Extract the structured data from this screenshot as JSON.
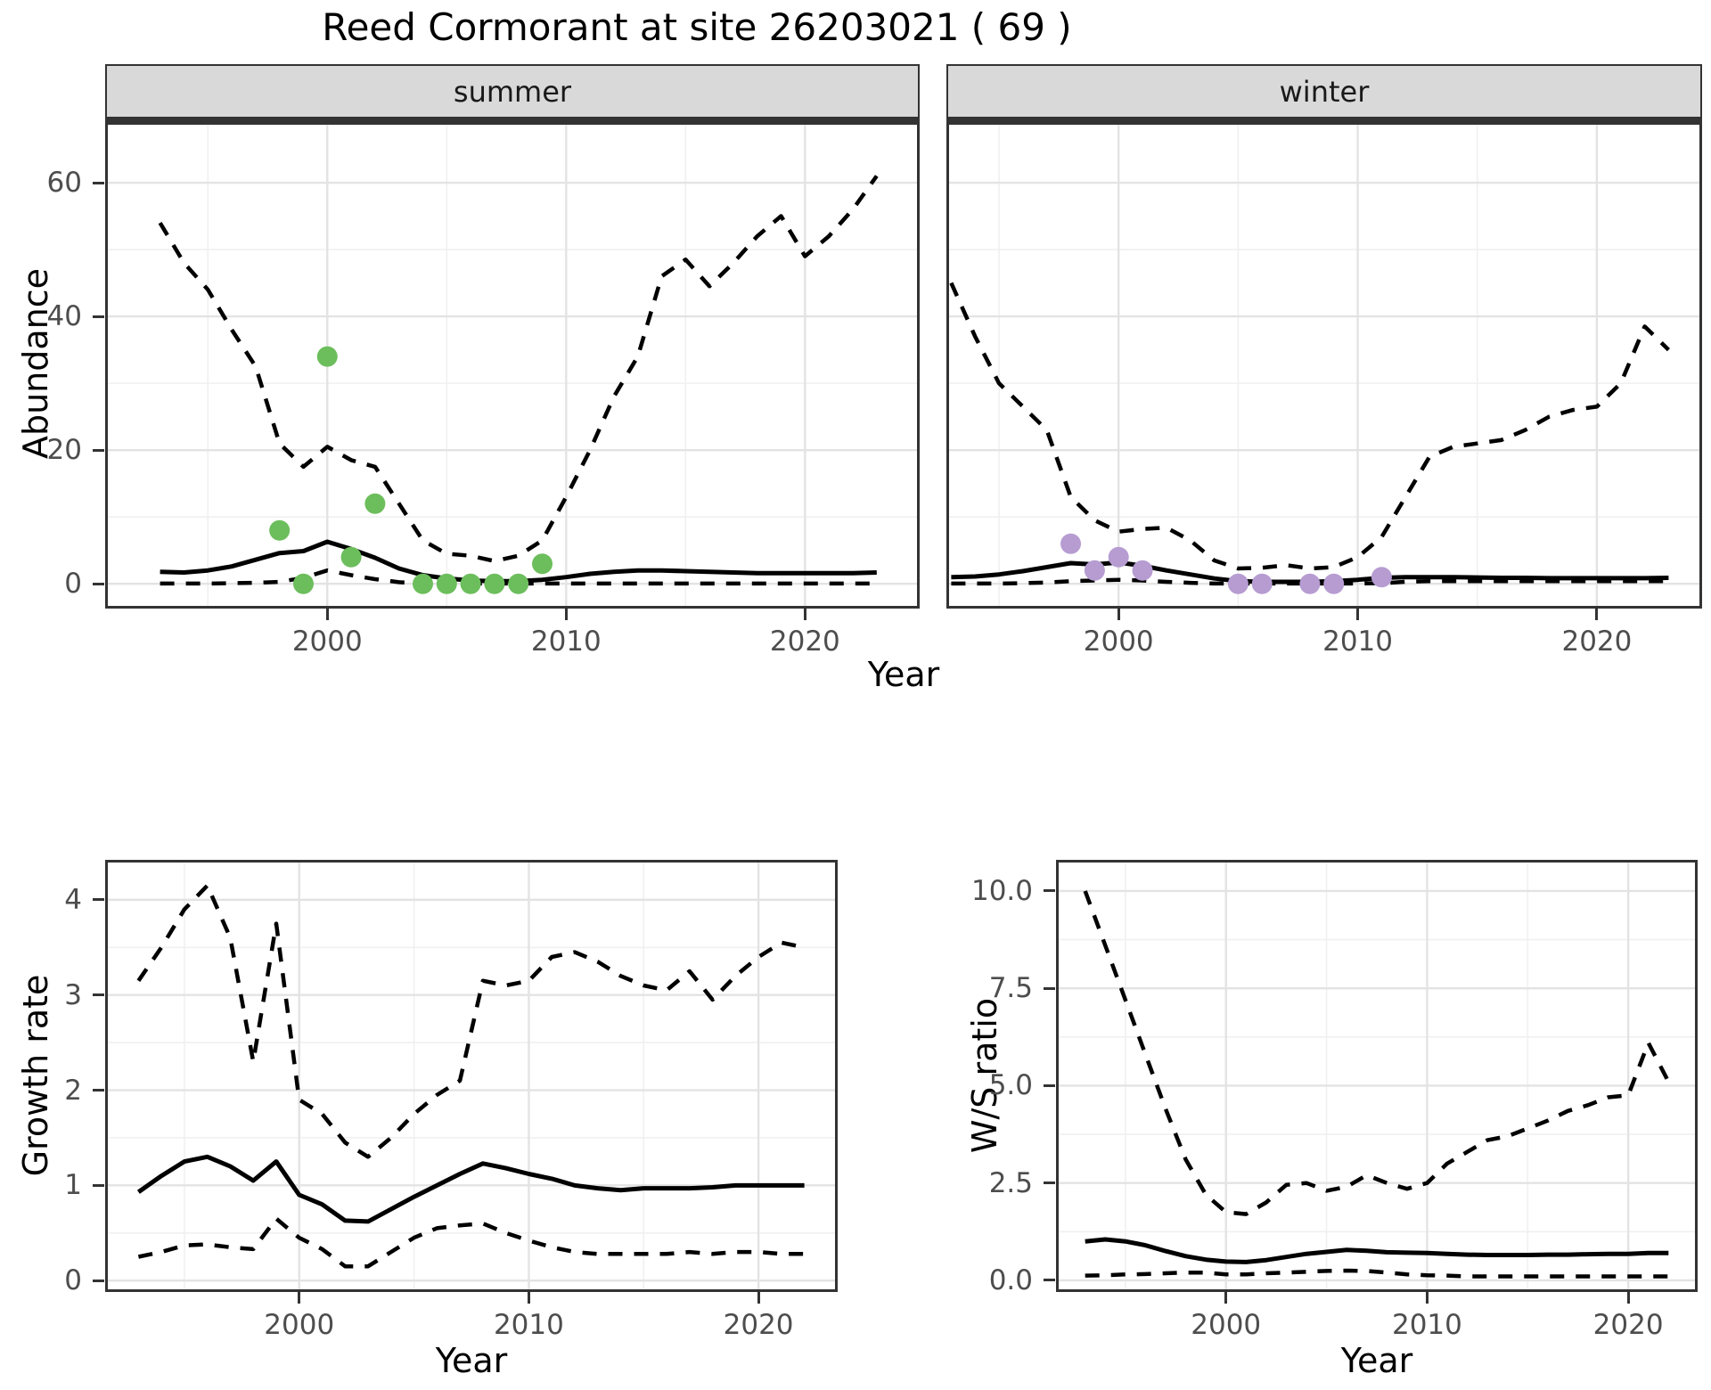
{
  "title": "Reed Cormorant at site 26203021 ( 69 )",
  "facets": {
    "summer_label": "summer",
    "winter_label": "winter"
  },
  "axis_labels": {
    "abundance": "Abundance",
    "year_top": "Year",
    "growth": "Growth rate",
    "year_growth": "Year",
    "ws": "W/S ratio",
    "year_ws": "Year"
  },
  "colors": {
    "summer_point": "#6cbe5c",
    "winter_point": "#b69cd1",
    "line": "#000000",
    "grid_major": "#e3e3e3",
    "grid_minor": "#f0f0f0",
    "strip_bg": "#d9d9d9",
    "panel_border": "#333333",
    "axis_text": "#4d4d4d"
  },
  "chart_data": [
    {
      "name": "abundance-summer",
      "type": "line",
      "facet": "summer",
      "ylabel": "Abundance",
      "xlabel": "Year",
      "x_domain": [
        1990.7,
        2024.8
      ],
      "y_domain": [
        -3.7,
        69.6
      ],
      "x_ticks": [
        2000,
        2010,
        2020
      ],
      "x_tick_labels": [
        "2000",
        "2010",
        "2020"
      ],
      "x_minor": [
        1995,
        2005,
        2015
      ],
      "y_ticks": [
        0,
        20,
        40,
        60
      ],
      "y_tick_labels": [
        "0",
        "20",
        "40",
        "60"
      ],
      "y_minor": [
        10,
        30,
        50
      ],
      "x": [
        1993,
        1994,
        1995,
        1996,
        1997,
        1998,
        1999,
        2000,
        2001,
        2002,
        2003,
        2004,
        2005,
        2006,
        2007,
        2008,
        2009,
        2010,
        2011,
        2012,
        2013,
        2014,
        2015,
        2016,
        2017,
        2018,
        2019,
        2020,
        2021,
        2022,
        2023
      ],
      "series": [
        {
          "name": "upper95",
          "style": "dashed",
          "values": [
            54,
            48,
            44,
            38,
            32.5,
            21,
            17.5,
            20.5,
            18.5,
            17.5,
            12,
            6.5,
            4.5,
            4.2,
            3.4,
            4.2,
            6.5,
            13,
            20,
            28,
            34,
            46,
            48.5,
            44.5,
            48,
            52,
            55,
            49,
            52,
            56,
            61
          ]
        },
        {
          "name": "median",
          "style": "solid",
          "values": [
            1.8,
            1.7,
            2.0,
            2.6,
            3.6,
            4.6,
            4.9,
            6.3,
            5.2,
            3.9,
            2.3,
            1.3,
            0.8,
            0.5,
            0.4,
            0.4,
            0.6,
            1.0,
            1.5,
            1.8,
            2.0,
            2.0,
            1.9,
            1.8,
            1.7,
            1.6,
            1.6,
            1.6,
            1.6,
            1.6,
            1.7
          ]
        },
        {
          "name": "lower95",
          "style": "dashed",
          "values": [
            0.05,
            0.05,
            0.05,
            0.1,
            0.15,
            0.3,
            0.9,
            2.0,
            1.3,
            0.7,
            0.25,
            0.05,
            0.05,
            0.05,
            0.05,
            0.05,
            0.05,
            0.05,
            0.05,
            0.05,
            0.05,
            0.05,
            0.05,
            0.05,
            0.05,
            0.05,
            0.05,
            0.05,
            0.05,
            0.05,
            0.05
          ]
        }
      ],
      "points": {
        "name": "observed-counts",
        "color_key": "summer_point",
        "x": [
          1998,
          1999,
          2000,
          2001,
          2002,
          2004,
          2005,
          2006,
          2007,
          2008,
          2009
        ],
        "y": [
          8,
          0,
          34,
          4,
          12,
          0,
          0,
          0,
          0,
          0,
          3
        ]
      }
    },
    {
      "name": "abundance-winter",
      "type": "line",
      "facet": "winter",
      "ylabel": "Abundance",
      "xlabel": "Year",
      "x_domain": [
        1992.8,
        2024.4
      ],
      "y_domain": [
        -3.7,
        69.6
      ],
      "x_ticks": [
        2000,
        2010,
        2020
      ],
      "x_tick_labels": [
        "2000",
        "2010",
        "2020"
      ],
      "x_minor": [
        1995,
        2005,
        2015
      ],
      "y_ticks": [
        0,
        20,
        40,
        60
      ],
      "y_tick_labels": [
        "0",
        "20",
        "40",
        "60"
      ],
      "y_minor": [
        10,
        30,
        50
      ],
      "x": [
        1993,
        1994,
        1995,
        1996,
        1997,
        1998,
        1999,
        2000,
        2001,
        2002,
        2003,
        2004,
        2005,
        2006,
        2007,
        2008,
        2009,
        2010,
        2011,
        2012,
        2013,
        2014,
        2015,
        2016,
        2017,
        2018,
        2019,
        2020,
        2021,
        2022,
        2023
      ],
      "series": [
        {
          "name": "upper95",
          "style": "dashed",
          "values": [
            45,
            37,
            30,
            26.5,
            23,
            13,
            9.5,
            7.8,
            8.2,
            8.4,
            6.5,
            3.5,
            2.3,
            2.4,
            2.8,
            2.3,
            2.5,
            4,
            7,
            13,
            19,
            20.5,
            21,
            21.5,
            23,
            25,
            26,
            26.5,
            30,
            38.5,
            35
          ]
        },
        {
          "name": "median",
          "style": "solid",
          "values": [
            1.0,
            1.1,
            1.4,
            1.9,
            2.5,
            3.1,
            2.9,
            3.2,
            2.7,
            2.0,
            1.4,
            0.8,
            0.4,
            0.3,
            0.3,
            0.3,
            0.4,
            0.6,
            0.9,
            1.0,
            1.0,
            1.0,
            0.95,
            0.9,
            0.9,
            0.85,
            0.85,
            0.85,
            0.85,
            0.85,
            0.9
          ]
        },
        {
          "name": "lower95",
          "style": "dashed",
          "values": [
            0.05,
            0.05,
            0.05,
            0.1,
            0.2,
            0.4,
            0.5,
            0.6,
            0.5,
            0.3,
            0.15,
            0.05,
            0.05,
            0.05,
            0.05,
            0.05,
            0.05,
            0.05,
            0.1,
            0.3,
            0.4,
            0.4,
            0.4,
            0.4,
            0.4,
            0.4,
            0.4,
            0.4,
            0.4,
            0.4,
            0.4
          ]
        }
      ],
      "points": {
        "name": "observed-counts",
        "color_key": "winter_point",
        "x": [
          1998,
          1999,
          2000,
          2001,
          2005,
          2006,
          2008,
          2009,
          2011
        ],
        "y": [
          6,
          2,
          4,
          2,
          0,
          0,
          0,
          0,
          1
        ]
      }
    },
    {
      "name": "growth-rate",
      "type": "line",
      "ylabel": "Growth rate",
      "xlabel": "Year",
      "x_domain": [
        1991.55,
        2023.45
      ],
      "y_domain": [
        -0.12,
        4.42
      ],
      "x_ticks": [
        2000,
        2010,
        2020
      ],
      "x_tick_labels": [
        "2000",
        "2010",
        "2020"
      ],
      "x_minor": [
        1995,
        2005,
        2015
      ],
      "y_ticks": [
        0,
        1,
        2,
        3,
        4
      ],
      "y_tick_labels": [
        "0",
        "1",
        "2",
        "3",
        "4"
      ],
      "y_minor": [
        0.5,
        1.5,
        2.5,
        3.5
      ],
      "x": [
        1993,
        1994,
        1995,
        1996,
        1997,
        1998,
        1999,
        2000,
        2001,
        2002,
        2003,
        2004,
        2005,
        2006,
        2007,
        2008,
        2009,
        2010,
        2011,
        2012,
        2013,
        2014,
        2015,
        2016,
        2017,
        2018,
        2019,
        2020,
        2021,
        2022
      ],
      "series": [
        {
          "name": "upper95",
          "style": "dashed",
          "values": [
            3.15,
            3.5,
            3.9,
            4.15,
            3.6,
            2.3,
            3.75,
            1.9,
            1.75,
            1.45,
            1.3,
            1.5,
            1.75,
            1.95,
            2.1,
            3.15,
            3.1,
            3.15,
            3.4,
            3.45,
            3.35,
            3.2,
            3.1,
            3.05,
            3.25,
            2.95,
            3.2,
            3.4,
            3.55,
            3.5
          ]
        },
        {
          "name": "median",
          "style": "solid",
          "values": [
            0.93,
            1.1,
            1.25,
            1.3,
            1.2,
            1.05,
            1.25,
            0.9,
            0.8,
            0.63,
            0.62,
            0.75,
            0.88,
            1.0,
            1.12,
            1.23,
            1.18,
            1.12,
            1.07,
            1.0,
            0.97,
            0.95,
            0.97,
            0.97,
            0.97,
            0.98,
            1.0,
            1.0,
            1.0,
            1.0
          ]
        },
        {
          "name": "lower95",
          "style": "dashed",
          "values": [
            0.25,
            0.3,
            0.37,
            0.38,
            0.35,
            0.33,
            0.65,
            0.45,
            0.33,
            0.15,
            0.15,
            0.3,
            0.45,
            0.55,
            0.58,
            0.6,
            0.5,
            0.42,
            0.35,
            0.3,
            0.28,
            0.28,
            0.28,
            0.28,
            0.3,
            0.28,
            0.3,
            0.3,
            0.28,
            0.28
          ]
        }
      ]
    },
    {
      "name": "ws-ratio",
      "type": "line",
      "ylabel": "W/S ratio",
      "xlabel": "Year",
      "x_domain": [
        1991.55,
        2023.45
      ],
      "y_domain": [
        -0.3,
        10.8
      ],
      "x_ticks": [
        2000,
        2010,
        2020
      ],
      "x_tick_labels": [
        "2000",
        "2010",
        "2020"
      ],
      "x_minor": [
        1995,
        2005,
        2015
      ],
      "y_ticks": [
        0,
        2.5,
        5,
        7.5,
        10
      ],
      "y_tick_labels": [
        "0.0",
        "2.5",
        "5.0",
        "7.5",
        "10.0"
      ],
      "y_minor": [
        1.25,
        3.75,
        6.25,
        8.75
      ],
      "x": [
        1993,
        1994,
        1995,
        1996,
        1997,
        1998,
        1999,
        2000,
        2001,
        2002,
        2003,
        2004,
        2005,
        2006,
        2007,
        2008,
        2009,
        2010,
        2011,
        2012,
        2013,
        2014,
        2015,
        2016,
        2017,
        2018,
        2019,
        2020,
        2021,
        2022
      ],
      "series": [
        {
          "name": "upper95",
          "style": "dashed",
          "values": [
            10.0,
            8.6,
            7.2,
            5.8,
            4.4,
            3.1,
            2.2,
            1.75,
            1.7,
            2.0,
            2.45,
            2.5,
            2.3,
            2.4,
            2.7,
            2.5,
            2.35,
            2.5,
            3.0,
            3.3,
            3.6,
            3.7,
            3.9,
            4.1,
            4.35,
            4.5,
            4.7,
            4.75,
            6.1,
            5.1
          ]
        },
        {
          "name": "median",
          "style": "solid",
          "values": [
            1.0,
            1.05,
            1.0,
            0.9,
            0.75,
            0.62,
            0.53,
            0.48,
            0.47,
            0.52,
            0.6,
            0.68,
            0.73,
            0.78,
            0.76,
            0.72,
            0.71,
            0.7,
            0.68,
            0.66,
            0.65,
            0.65,
            0.65,
            0.66,
            0.66,
            0.67,
            0.68,
            0.68,
            0.7,
            0.7
          ]
        },
        {
          "name": "lower95",
          "style": "dashed",
          "values": [
            0.12,
            0.13,
            0.15,
            0.16,
            0.18,
            0.2,
            0.2,
            0.15,
            0.15,
            0.18,
            0.2,
            0.22,
            0.24,
            0.25,
            0.24,
            0.2,
            0.15,
            0.13,
            0.12,
            0.1,
            0.1,
            0.1,
            0.1,
            0.1,
            0.1,
            0.1,
            0.1,
            0.1,
            0.1,
            0.1
          ]
        }
      ]
    }
  ]
}
